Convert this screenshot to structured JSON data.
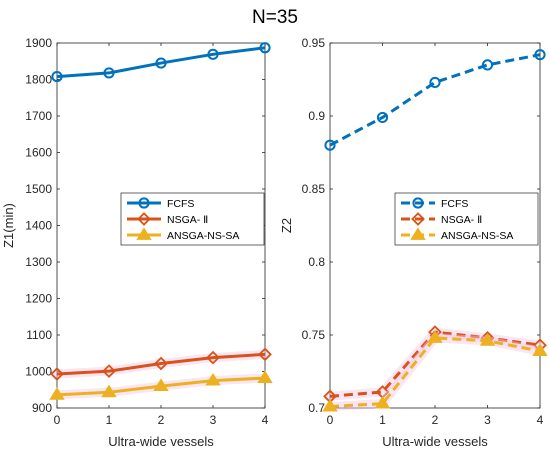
{
  "figure": {
    "title": "N=35"
  },
  "chart_data": [
    {
      "type": "line",
      "x": [
        0,
        1,
        2,
        3,
        4
      ],
      "xlabel": "Ultra-wide vessels",
      "ylabel": "Z1(min)",
      "xlim": [
        0,
        4
      ],
      "ylim": [
        900,
        1900
      ],
      "xticks": [
        "0",
        "1",
        "2",
        "3",
        "4"
      ],
      "yticks": [
        "900",
        "1000",
        "1100",
        "1200",
        "1300",
        "1400",
        "1500",
        "1600",
        "1700",
        "1800",
        "1900"
      ],
      "linestyle": "solid",
      "grid": false,
      "legend_position": "right-middle",
      "series": [
        {
          "name": "FCFS",
          "values": [
            1808,
            1818,
            1845,
            1869,
            1887
          ],
          "color": "#0072BD",
          "marker": "circle"
        },
        {
          "name": "NSGA- Ⅱ",
          "values": [
            993,
            1001,
            1022,
            1038,
            1047
          ],
          "color": "#D95319",
          "marker": "diamond"
        },
        {
          "name": "ANSGA-NS-SA",
          "values": [
            936,
            943,
            960,
            975,
            982
          ],
          "color": "#EDB120",
          "marker": "triangle"
        }
      ]
    },
    {
      "type": "line",
      "x": [
        0,
        1,
        2,
        3,
        4
      ],
      "xlabel": "Ultra-wide vessels",
      "ylabel": "Z2",
      "xlim": [
        0,
        4
      ],
      "ylim": [
        0.7,
        0.95
      ],
      "xticks": [
        "0",
        "1",
        "2",
        "3",
        "4"
      ],
      "yticks": [
        "0.7",
        "0.75",
        "0.8",
        "0.85",
        "0.9",
        "0.95"
      ],
      "linestyle": "dashed",
      "grid": false,
      "legend_position": "right-middle",
      "series": [
        {
          "name": "FCFS",
          "values": [
            0.88,
            0.899,
            0.923,
            0.935,
            0.942
          ],
          "color": "#0072BD",
          "marker": "circle"
        },
        {
          "name": "NSGA- Ⅱ",
          "values": [
            0.708,
            0.711,
            0.752,
            0.748,
            0.743
          ],
          "color": "#D95319",
          "marker": "diamond"
        },
        {
          "name": "ANSGA-NS-SA",
          "values": [
            0.701,
            0.703,
            0.748,
            0.746,
            0.739
          ],
          "color": "#EDB120",
          "marker": "triangle"
        }
      ]
    }
  ]
}
